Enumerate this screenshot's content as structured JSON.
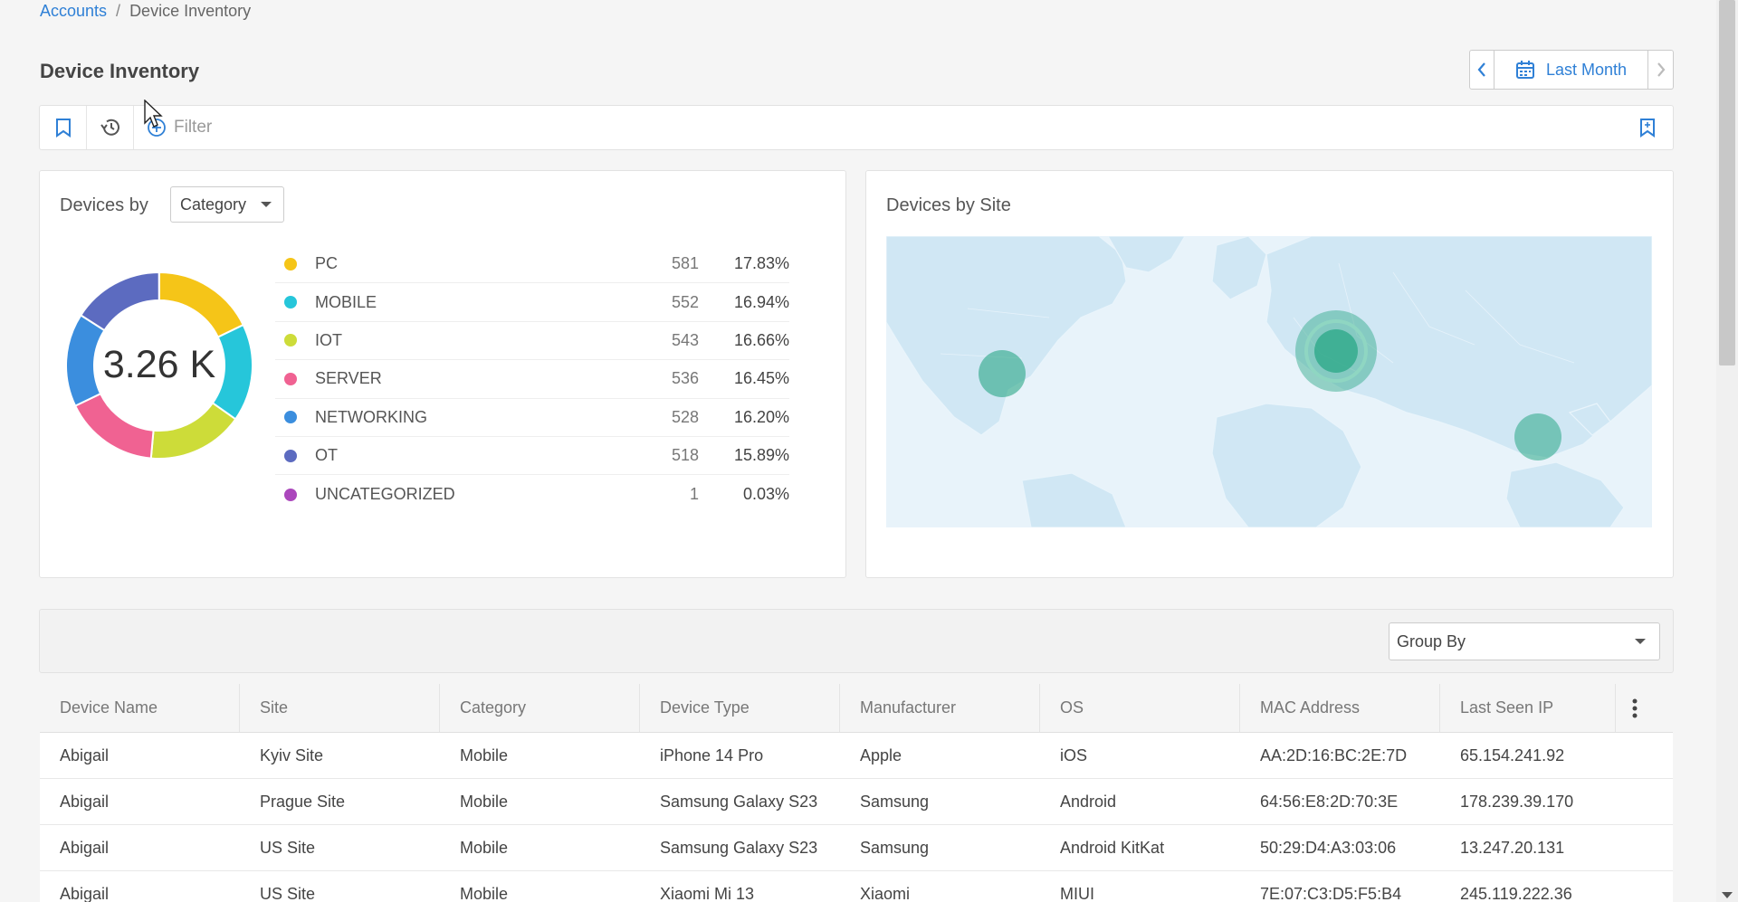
{
  "breadcrumb": {
    "parent": "Accounts",
    "separator": "/",
    "current": "Device Inventory"
  },
  "page": {
    "title": "Device Inventory"
  },
  "date_range": {
    "label": "Last Month"
  },
  "filter": {
    "placeholder": "Filter"
  },
  "category_card": {
    "title": "Devices by",
    "dropdown": "Category",
    "total": "3.26 K",
    "items": [
      {
        "name": "PC",
        "count": "581",
        "pct": "17.83%",
        "value": 581,
        "color": "#f5c518"
      },
      {
        "name": "MOBILE",
        "count": "552",
        "pct": "16.94%",
        "value": 552,
        "color": "#26c6da"
      },
      {
        "name": "IOT",
        "count": "543",
        "pct": "16.66%",
        "value": 543,
        "color": "#cddc39"
      },
      {
        "name": "SERVER",
        "count": "536",
        "pct": "16.45%",
        "value": 536,
        "color": "#f06292"
      },
      {
        "name": "NETWORKING",
        "count": "528",
        "pct": "16.20%",
        "value": 528,
        "color": "#3b8ede"
      },
      {
        "name": "OT",
        "count": "518",
        "pct": "15.89%",
        "value": 518,
        "color": "#5c6bc0"
      },
      {
        "name": "UNCATEGORIZED",
        "count": "1",
        "pct": "0.03%",
        "value": 1,
        "color": "#ab47bc"
      }
    ]
  },
  "map_card": {
    "title": "Devices by Site"
  },
  "grid": {
    "group_by": "Group By",
    "columns": [
      "Device Name",
      "Site",
      "Category",
      "Device Type",
      "Manufacturer",
      "OS",
      "MAC Address",
      "Last Seen IP"
    ],
    "rows": [
      [
        "Abigail",
        "Kyiv Site",
        "Mobile",
        "iPhone 14 Pro",
        "Apple",
        "iOS",
        "AA:2D:16:BC:2E:7D",
        "65.154.241.92"
      ],
      [
        "Abigail",
        "Prague Site",
        "Mobile",
        "Samsung Galaxy S23",
        "Samsung",
        "Android",
        "64:56:E8:2D:70:3E",
        "178.239.39.170"
      ],
      [
        "Abigail",
        "US Site",
        "Mobile",
        "Samsung Galaxy S23",
        "Samsung",
        "Android KitKat",
        "50:29:D4:A3:03:06",
        "13.247.20.131"
      ],
      [
        "Abigail",
        "US Site",
        "Mobile",
        "Xiaomi Mi 13",
        "Xiaomi",
        "MIUI",
        "7E:07:C3:D5:F5:B4",
        "245.119.222.36"
      ]
    ]
  },
  "colors": {
    "accent": "#2f80d6",
    "map_land": "#d3e9f5",
    "map_bubble": "#2aa786"
  }
}
